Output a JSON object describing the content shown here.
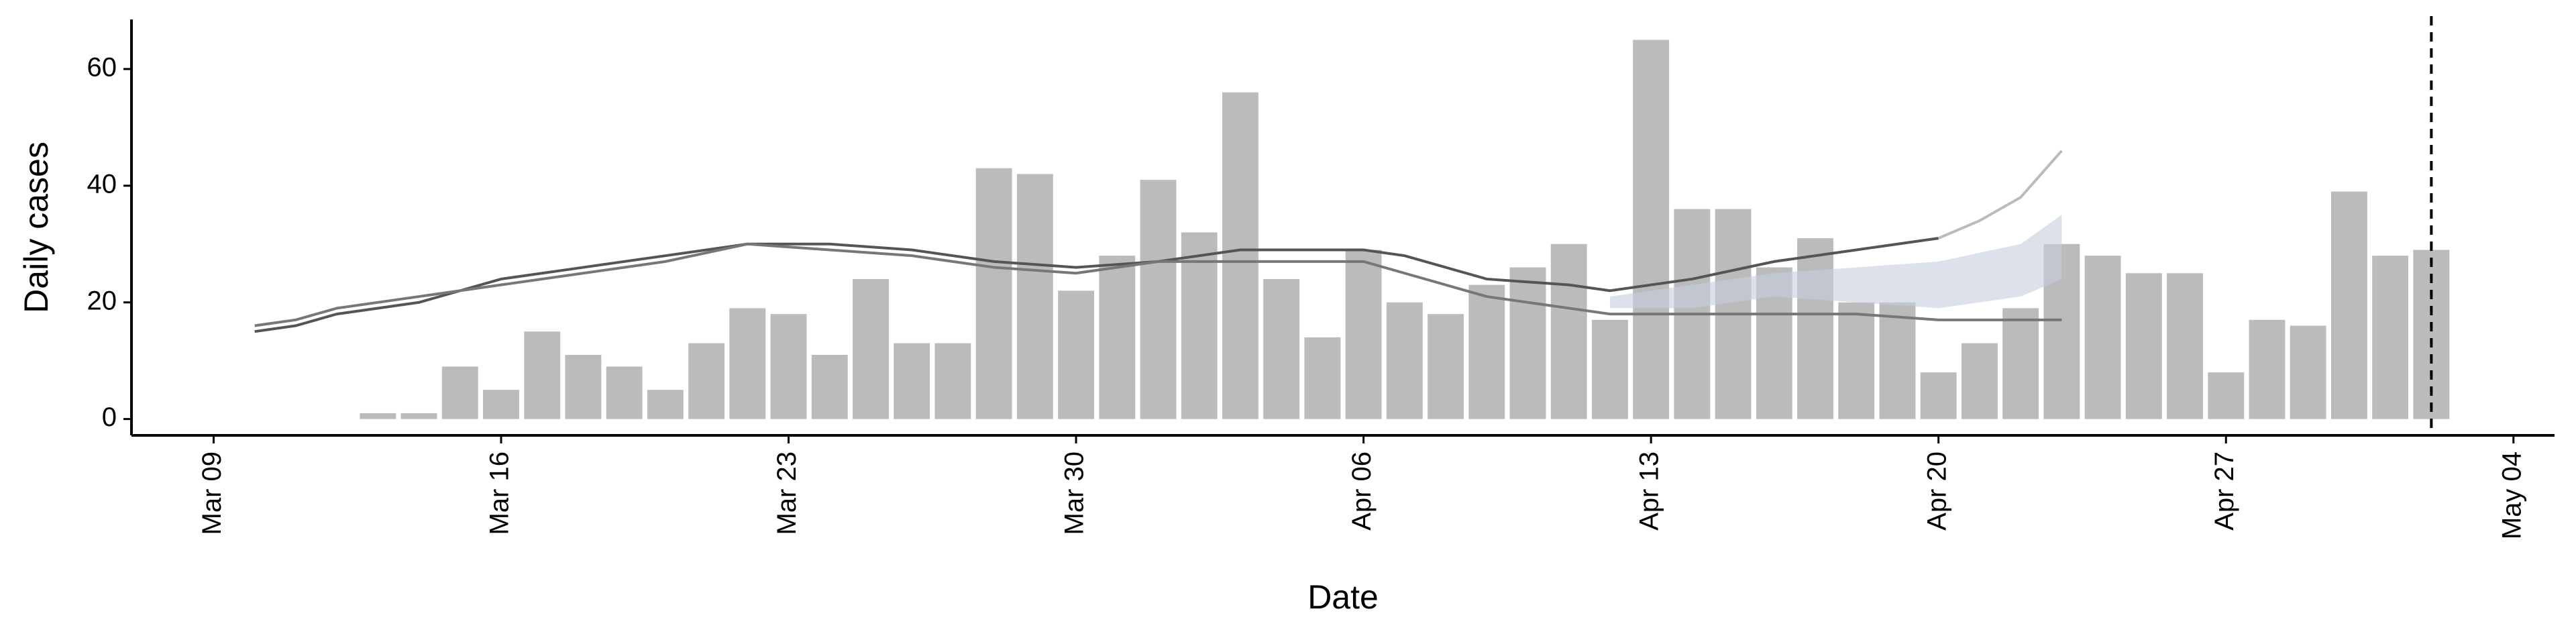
{
  "chart_data": {
    "type": "bar",
    "x_label": "Date",
    "y_label": "Daily cases",
    "categories": [
      "Mar 13",
      "Mar 14",
      "Mar 15",
      "Mar 16",
      "Mar 17",
      "Mar 18",
      "Mar 19",
      "Mar 20",
      "Mar 21",
      "Mar 22",
      "Mar 23",
      "Mar 24",
      "Mar 25",
      "Mar 26",
      "Mar 27",
      "Mar 28",
      "Mar 29",
      "Mar 30",
      "Mar 31",
      "Apr 01",
      "Apr 02",
      "Apr 03",
      "Apr 04",
      "Apr 05",
      "Apr 06",
      "Apr 07",
      "Apr 08",
      "Apr 09",
      "Apr 10",
      "Apr 11",
      "Apr 12",
      "Apr 13",
      "Apr 14",
      "Apr 15",
      "Apr 16",
      "Apr 17",
      "Apr 18",
      "Apr 19",
      "Apr 20",
      "Apr 21",
      "Apr 22",
      "Apr 23",
      "Apr 24",
      "Apr 25",
      "Apr 26",
      "Apr 27",
      "Apr 28",
      "Apr 29",
      "Apr 30",
      "May 01",
      "May 02"
    ],
    "values": [
      1,
      1,
      9,
      5,
      15,
      11,
      9,
      5,
      13,
      19,
      18,
      11,
      24,
      13,
      13,
      43,
      42,
      22,
      28,
      41,
      32,
      56,
      24,
      14,
      29,
      20,
      18,
      23,
      26,
      30,
      17,
      65,
      36,
      36,
      26,
      31,
      20,
      20,
      8,
      13,
      19,
      30,
      28,
      25,
      25,
      8,
      17,
      16,
      39,
      28,
      29
    ],
    "color": "#bbbbbb",
    "lines": {
      "x": [
        "Mar 10",
        "Mar 11",
        "Mar 12",
        "Mar 14",
        "Mar 16",
        "Mar 18",
        "Mar 20",
        "Mar 22",
        "Mar 24",
        "Mar 26",
        "Mar 28",
        "Mar 30",
        "Apr 01",
        "Apr 03",
        "Apr 06",
        "Apr 07",
        "Apr 09",
        "Apr 11",
        "Apr 12",
        "Apr 14",
        "Apr 16",
        "Apr 18",
        "Apr 20",
        "Apr 21",
        "Apr 22",
        "Apr 23"
      ],
      "series": [
        {
          "color": "#555555",
          "values": [
            15,
            16,
            18,
            20,
            24,
            26,
            28,
            30,
            30,
            29,
            27,
            26,
            27,
            29,
            29,
            28,
            24,
            23,
            22,
            24,
            27,
            29,
            31,
            null,
            null,
            null
          ]
        },
        {
          "color": "#777777",
          "values": [
            16,
            17,
            19,
            21,
            23,
            25,
            27,
            30,
            29,
            28,
            26,
            25,
            27,
            27,
            27,
            25,
            21,
            19,
            18,
            18,
            18,
            18,
            17,
            17,
            17,
            17
          ]
        },
        {
          "color": "#bbbbbb",
          "values": [
            null,
            null,
            null,
            null,
            null,
            null,
            null,
            null,
            null,
            null,
            null,
            null,
            null,
            null,
            null,
            null,
            null,
            null,
            null,
            null,
            null,
            null,
            31,
            34,
            38,
            46
          ]
        }
      ]
    },
    "band": {
      "color": "#c5cde0",
      "x": [
        "Apr 12",
        "Apr 14",
        "Apr 16",
        "Apr 18",
        "Apr 20",
        "Apr 22",
        "Apr 23"
      ],
      "lower": [
        19,
        19,
        21,
        20,
        19,
        21,
        24
      ],
      "upper": [
        21,
        23,
        25,
        26,
        27,
        30,
        35
      ]
    },
    "vline": "May 02",
    "xlim": [
      "Mar 07",
      "May 05"
    ],
    "xticks": [
      "Mar 09",
      "Mar 16",
      "Mar 23",
      "Mar 30",
      "Apr 06",
      "Apr 13",
      "Apr 20",
      "Apr 27",
      "May 04"
    ],
    "ylim": [
      -2.8,
      68.5
    ],
    "yticks": [
      0,
      20,
      40,
      60
    ]
  }
}
